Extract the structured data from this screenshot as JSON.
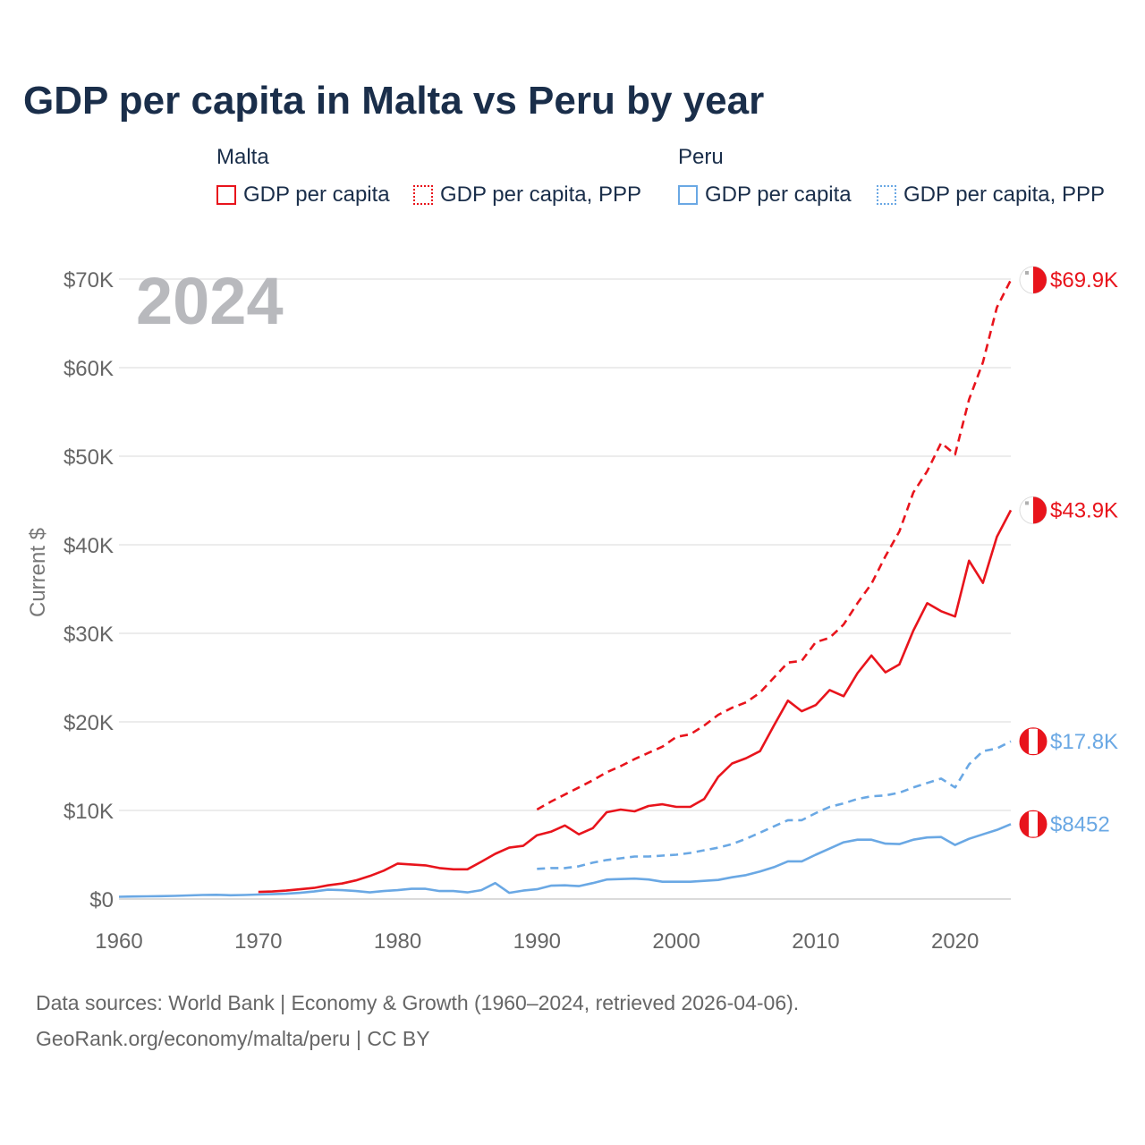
{
  "title": "GDP per capita in Malta vs Peru by year",
  "year_label": "2024",
  "legend": [
    {
      "group": "Malta",
      "items": [
        {
          "label": "GDP per capita",
          "style": "solid",
          "color": "#e8141c"
        },
        {
          "label": "GDP per capita, PPP",
          "style": "dotted",
          "color": "#e8141c"
        }
      ]
    },
    {
      "group": "Peru",
      "items": [
        {
          "label": "GDP per capita",
          "style": "solid",
          "color": "#6aa8e4"
        },
        {
          "label": "GDP per capita, PPP",
          "style": "dotted",
          "color": "#6aa8e4"
        }
      ]
    }
  ],
  "footer": {
    "line1": "Data sources: World Bank | Economy & Growth (1960–2024, retrieved 2026-04-06).",
    "line2": "GeoRank.org/economy/malta/peru | CC BY"
  },
  "chart_data": {
    "type": "line",
    "title": "GDP per capita in Malta vs Peru by year",
    "xlabel": "",
    "ylabel": "Current $",
    "xlim": [
      1960,
      2024
    ],
    "ylim": [
      0,
      70000
    ],
    "x_ticks": [
      1960,
      1970,
      1980,
      1990,
      2000,
      2010,
      2020
    ],
    "x_tick_labels": [
      "1960",
      "1970",
      "1980",
      "1990",
      "2000",
      "2010",
      "2020"
    ],
    "y_ticks": [
      0,
      10000,
      20000,
      30000,
      40000,
      50000,
      60000,
      70000
    ],
    "y_tick_labels": [
      "$0",
      "$10K",
      "$20K",
      "$30K",
      "$40K",
      "$50K",
      "$60K",
      "$70K"
    ],
    "grid": true,
    "series": [
      {
        "name": "Malta GDP per capita",
        "color": "#e8141c",
        "dash": "solid",
        "end_label": "$43.9K",
        "flag": "malta",
        "x": [
          1970,
          1971,
          1972,
          1973,
          1974,
          1975,
          1976,
          1977,
          1978,
          1979,
          1980,
          1981,
          1982,
          1983,
          1984,
          1985,
          1986,
          1987,
          1988,
          1989,
          1990,
          1991,
          1992,
          1993,
          1994,
          1995,
          1996,
          1997,
          1998,
          1999,
          2000,
          2001,
          2002,
          2003,
          2004,
          2005,
          2006,
          2007,
          2008,
          2009,
          2010,
          2011,
          2012,
          2013,
          2014,
          2015,
          2016,
          2017,
          2018,
          2019,
          2020,
          2021,
          2022,
          2023,
          2024
        ],
        "values": [
          800,
          850,
          950,
          1100,
          1250,
          1550,
          1750,
          2100,
          2600,
          3200,
          4000,
          3900,
          3800,
          3500,
          3350,
          3350,
          4200,
          5100,
          5800,
          6000,
          7200,
          7600,
          8300,
          7300,
          8000,
          9800,
          10100,
          9900,
          10500,
          10700,
          10400,
          10400,
          11300,
          13800,
          15300,
          15900,
          16700,
          19600,
          22400,
          21200,
          21900,
          23600,
          22900,
          25500,
          27500,
          25600,
          26500,
          30300,
          33400,
          32500,
          31900,
          38200,
          35700,
          40900,
          43900
        ]
      },
      {
        "name": "Malta GDP per capita, PPP",
        "color": "#e8141c",
        "dash": "dashed",
        "end_label": "$69.9K",
        "flag": "malta",
        "x": [
          1990,
          1991,
          1992,
          1993,
          1994,
          1995,
          1996,
          1997,
          1998,
          1999,
          2000,
          2001,
          2002,
          2003,
          2004,
          2005,
          2006,
          2007,
          2008,
          2009,
          2010,
          2011,
          2012,
          2013,
          2014,
          2015,
          2016,
          2017,
          2018,
          2019,
          2020,
          2021,
          2022,
          2023,
          2024
        ],
        "values": [
          10100,
          11000,
          11800,
          12600,
          13400,
          14300,
          15000,
          15800,
          16500,
          17200,
          18300,
          18600,
          19600,
          20800,
          21600,
          22200,
          23300,
          25000,
          26700,
          26900,
          29000,
          29500,
          31000,
          33400,
          35600,
          38700,
          41500,
          45900,
          48300,
          51500,
          50200,
          56400,
          60600,
          66800,
          69900
        ]
      },
      {
        "name": "Peru GDP per capita",
        "color": "#6aa8e4",
        "dash": "solid",
        "end_label": "$8452",
        "flag": "peru",
        "x": [
          1960,
          1961,
          1962,
          1963,
          1964,
          1965,
          1966,
          1967,
          1968,
          1969,
          1970,
          1971,
          1972,
          1973,
          1974,
          1975,
          1976,
          1977,
          1978,
          1979,
          1980,
          1981,
          1982,
          1983,
          1984,
          1985,
          1986,
          1987,
          1988,
          1989,
          1990,
          1991,
          1992,
          1993,
          1994,
          1995,
          1996,
          1997,
          1998,
          1999,
          2000,
          2001,
          2002,
          2003,
          2004,
          2005,
          2006,
          2007,
          2008,
          2009,
          2010,
          2011,
          2012,
          2013,
          2014,
          2015,
          2016,
          2017,
          2018,
          2019,
          2020,
          2021,
          2022,
          2023,
          2024
        ],
        "values": [
          250,
          280,
          300,
          320,
          350,
          400,
          450,
          470,
          420,
          450,
          500,
          550,
          600,
          700,
          850,
          1050,
          1000,
          900,
          750,
          900,
          1000,
          1150,
          1150,
          900,
          900,
          750,
          1000,
          1800,
          700,
          950,
          1100,
          1500,
          1550,
          1450,
          1800,
          2200,
          2250,
          2300,
          2200,
          1950,
          1950,
          1950,
          2050,
          2150,
          2450,
          2700,
          3100,
          3600,
          4250,
          4250,
          5000,
          5700,
          6400,
          6700,
          6700,
          6250,
          6200,
          6700,
          6950,
          7000,
          6100,
          6800,
          7300,
          7800,
          8452
        ]
      },
      {
        "name": "Peru GDP per capita, PPP",
        "color": "#6aa8e4",
        "dash": "dashed",
        "end_label": "$17.8K",
        "flag": "peru",
        "x": [
          1990,
          1991,
          1992,
          1993,
          1994,
          1995,
          1996,
          1997,
          1998,
          1999,
          2000,
          2001,
          2002,
          2003,
          2004,
          2005,
          2006,
          2007,
          2008,
          2009,
          2010,
          2011,
          2012,
          2013,
          2014,
          2015,
          2016,
          2017,
          2018,
          2019,
          2020,
          2021,
          2022,
          2023,
          2024
        ],
        "values": [
          3400,
          3500,
          3500,
          3700,
          4100,
          4400,
          4600,
          4800,
          4800,
          4900,
          5000,
          5200,
          5500,
          5800,
          6200,
          6800,
          7500,
          8200,
          8900,
          8900,
          9700,
          10400,
          10800,
          11300,
          11600,
          11700,
          12000,
          12600,
          13100,
          13600,
          12600,
          15200,
          16700,
          17000,
          17800
        ]
      }
    ]
  }
}
